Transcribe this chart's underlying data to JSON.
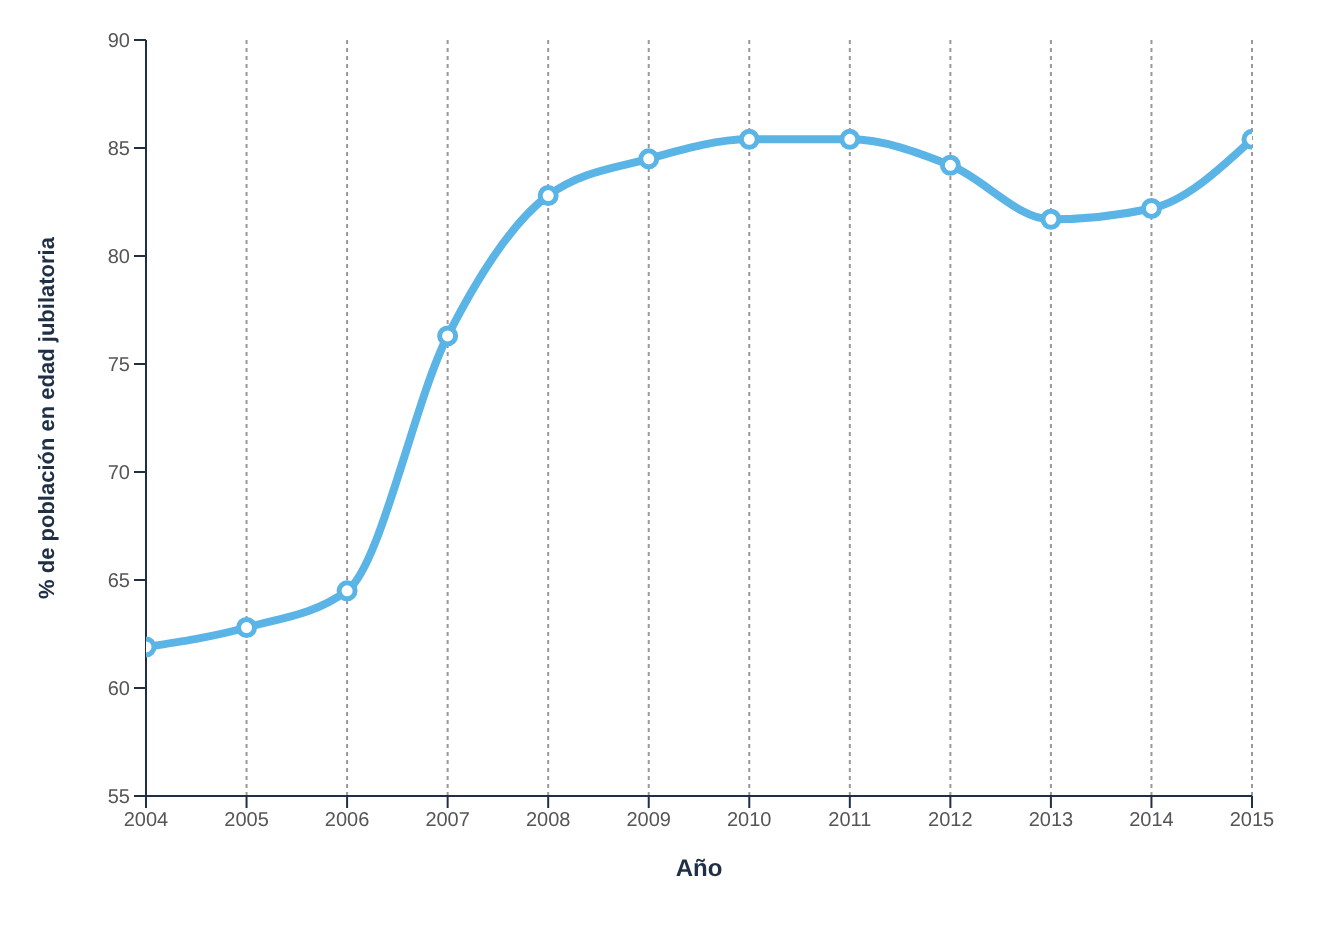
{
  "chart_data": {
    "type": "line",
    "xlabel": "Año",
    "ylabel": "% de población en edad jubilatoria",
    "x": [
      2004,
      2005,
      2006,
      2007,
      2008,
      2009,
      2010,
      2011,
      2012,
      2013,
      2014,
      2015
    ],
    "series": [
      {
        "color": "#5ab4e5",
        "values": [
          61.9,
          62.8,
          64.5,
          76.3,
          82.8,
          84.5,
          85.4,
          85.4,
          84.2,
          81.7,
          82.2,
          85.4
        ]
      }
    ],
    "xlim": [
      2004,
      2015
    ],
    "xticks": [
      2004,
      2005,
      2006,
      2007,
      2008,
      2009,
      2010,
      2011,
      2012,
      2013,
      2014,
      2015
    ],
    "ylim": [
      55,
      90
    ],
    "yticks": [
      55,
      60,
      65,
      70,
      75,
      80,
      85,
      90
    ],
    "grid": "x",
    "marker": "circle",
    "line_style": "solid",
    "legend": false
  }
}
